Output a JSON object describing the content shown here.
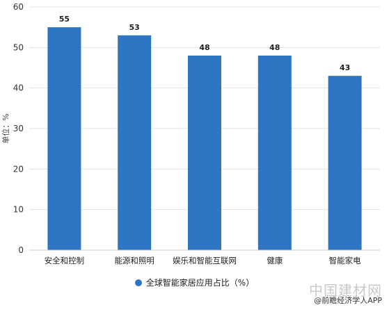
{
  "chart_data": {
    "type": "bar",
    "title": "",
    "xlabel": "",
    "ylabel": "单位：%",
    "categories": [
      "安全和控制",
      "能源和照明",
      "娱乐和智能互联网",
      "健康",
      "智能家电"
    ],
    "series": [
      {
        "name": "全球智能家居应用占比（%）",
        "values": [
          55,
          53,
          48,
          48,
          43
        ]
      }
    ],
    "ylim": [
      0,
      60
    ],
    "yticks": [
      0,
      10,
      20,
      30,
      40,
      50,
      60
    ],
    "grid": true,
    "legend_position": "bottom",
    "bar_color": "#2e75c4",
    "grid_color": "#e3e3e3"
  },
  "watermarks": {
    "brand": "中国建材网",
    "app": "@前瞻经济学人APP"
  }
}
